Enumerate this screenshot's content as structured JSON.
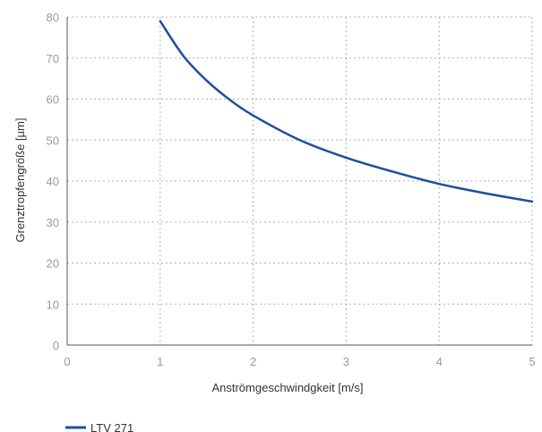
{
  "chart_data": {
    "type": "line",
    "xlabel": "Anströmgeschwindgkeit [m/s]",
    "ylabel": "Grenztropfengröße [µm]",
    "xlim": [
      0,
      5
    ],
    "ylim": [
      0,
      80
    ],
    "x_ticks": [
      "0",
      "1",
      "2",
      "3",
      "4",
      "5"
    ],
    "y_ticks": [
      "0",
      "10",
      "20",
      "30",
      "40",
      "50",
      "60",
      "70",
      "80"
    ],
    "grid": true,
    "legend_position": "bottom-left",
    "series": [
      {
        "name": "LTV 271",
        "color": "#1f4e9e",
        "x": [
          1.0,
          1.25,
          1.5,
          1.75,
          2.0,
          2.5,
          3.0,
          3.5,
          4.0,
          4.5,
          5.0
        ],
        "y": [
          79.0,
          70.5,
          64.5,
          59.8,
          56.0,
          50.0,
          45.7,
          42.3,
          39.3,
          37.0,
          35.0
        ]
      }
    ]
  }
}
